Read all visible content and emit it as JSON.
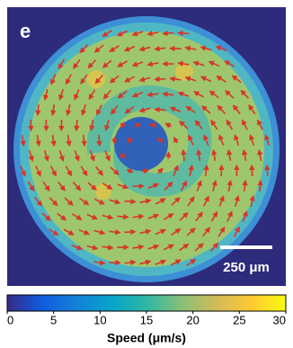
{
  "chart_data": {
    "type": "vector-field",
    "panel_label": "e",
    "scale_bar_label": "250 μm",
    "colorbar": {
      "xlabel": "Speed (μm/s)",
      "xlim": [
        0,
        30
      ],
      "xticks": [
        0,
        5,
        10,
        15,
        20,
        25,
        30
      ],
      "colormap": [
        "#352a87",
        "#0f5cdd",
        "#1481d6",
        "#06a4ca",
        "#2eb7a4",
        "#87bf77",
        "#d1bb59",
        "#fec832",
        "#f9fb0e"
      ]
    }
  }
}
